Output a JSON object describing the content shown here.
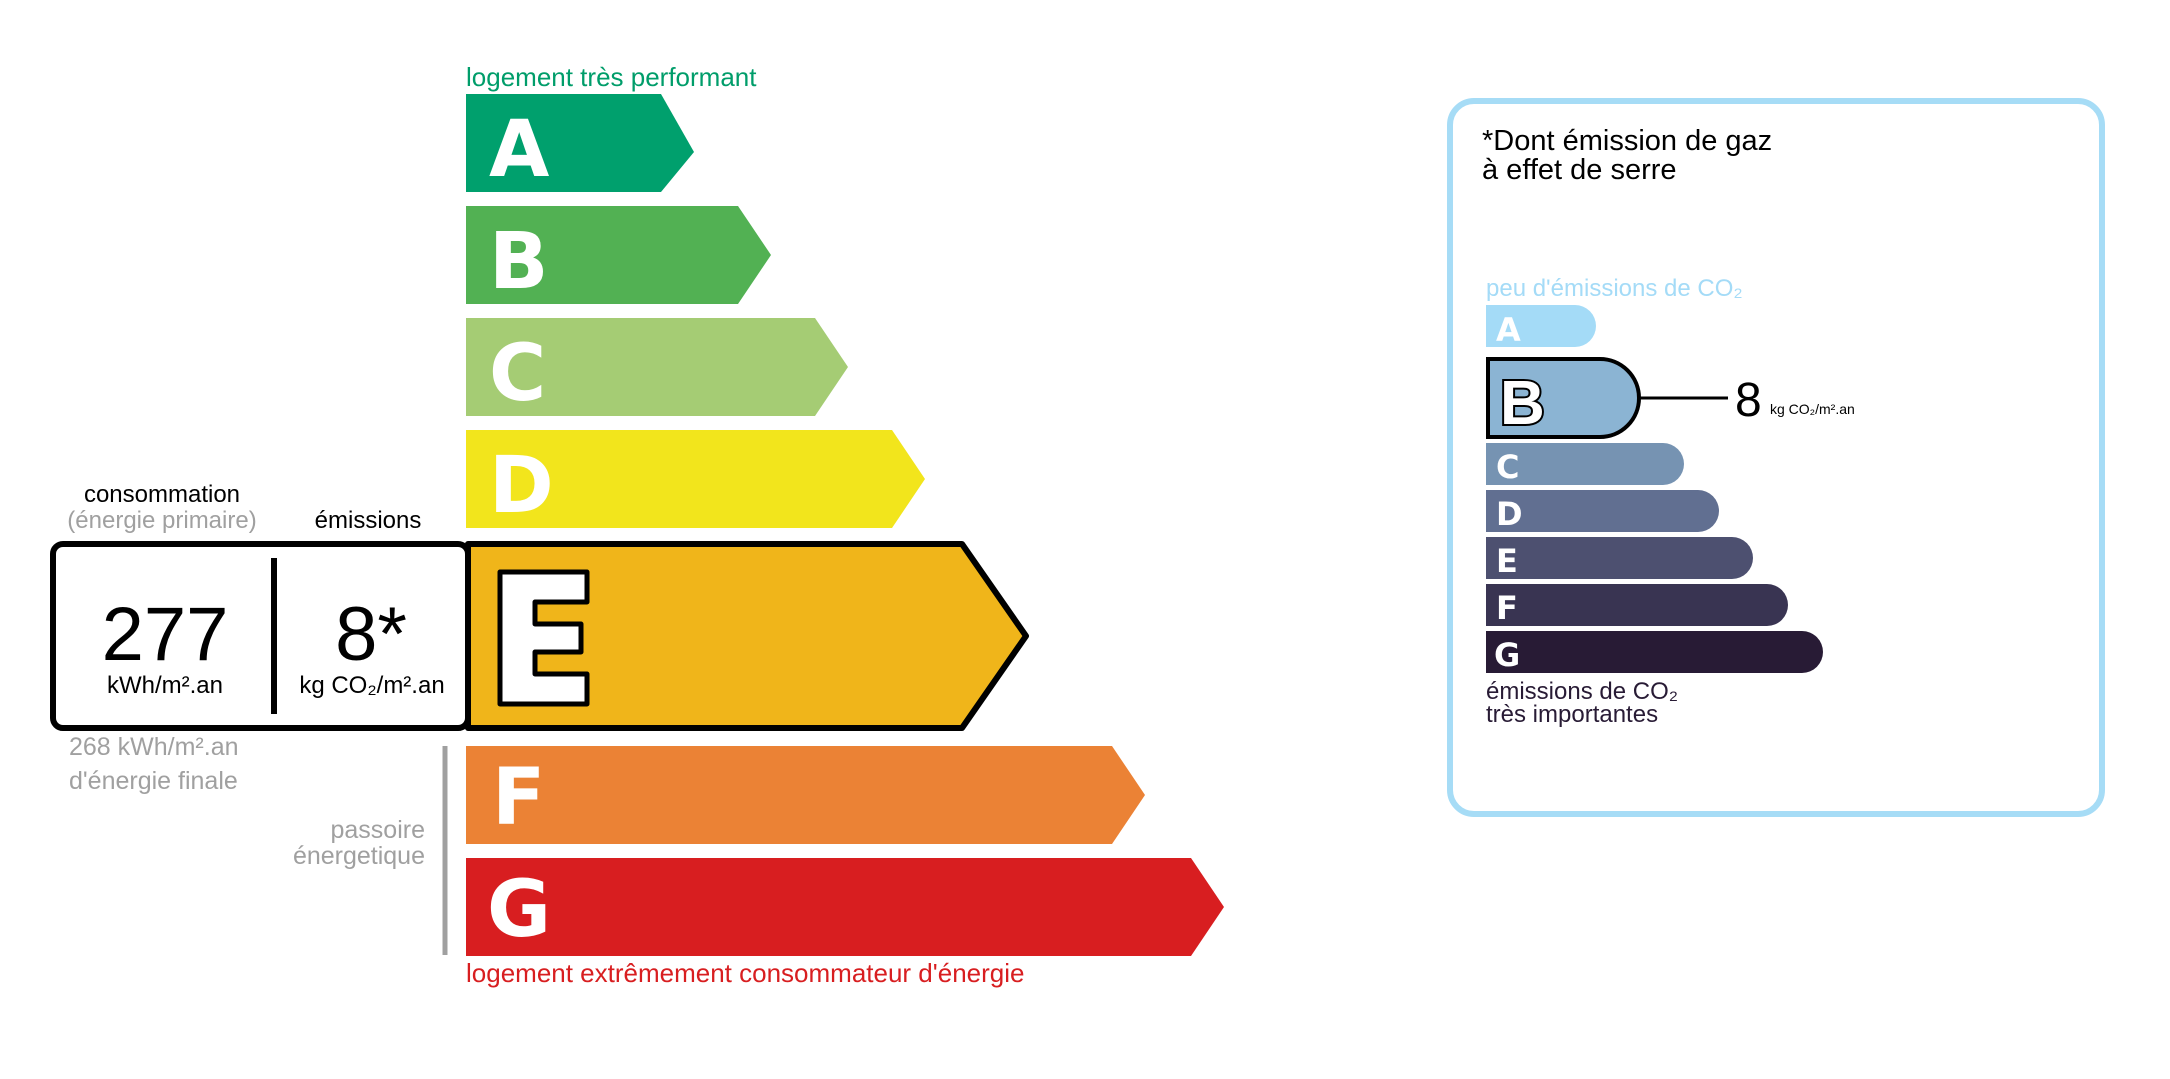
{
  "energy_label": {
    "top_caption": "logement très performant",
    "bottom_caption": "logement extrêmement consommateur d'énergie",
    "classes": [
      {
        "letter": "A",
        "color": "#00a06d"
      },
      {
        "letter": "B",
        "color": "#52b153"
      },
      {
        "letter": "C",
        "color": "#a5cc74"
      },
      {
        "letter": "D",
        "color": "#f2e51c"
      },
      {
        "letter": "E",
        "color": "#f0b51a"
      },
      {
        "letter": "F",
        "color": "#eb8235"
      },
      {
        "letter": "G",
        "color": "#d81e20"
      }
    ],
    "current_class": "E",
    "consumption_label": "consommation",
    "consumption_sublabel": "(énergie primaire)",
    "emissions_label": "émissions",
    "consumption_value": "277",
    "consumption_unit": "kWh/m².an",
    "emissions_value": "8*",
    "emissions_unit": "kg CO₂/m².an",
    "final_energy_value": "268 kWh/m².an",
    "final_energy_label": "d'énergie finale",
    "passoire_line1": "passoire",
    "passoire_line2": "énergetique"
  },
  "ghg_panel": {
    "title_line1": "*Dont émission de gaz",
    "title_line2": "à effet de serre",
    "top_caption": "peu d'émissions de CO₂",
    "bottom_caption_line1": "émissions de CO₂",
    "bottom_caption_line2": "très importantes",
    "classes": [
      {
        "letter": "A",
        "color": "#a4dbf7"
      },
      {
        "letter": "B",
        "color": "#8bb4d3"
      },
      {
        "letter": "C",
        "color": "#7693b2"
      },
      {
        "letter": "D",
        "color": "#616f91"
      },
      {
        "letter": "E",
        "color": "#4d5070"
      },
      {
        "letter": "F",
        "color": "#393452"
      },
      {
        "letter": "G",
        "color": "#281b35"
      }
    ],
    "current_class": "B",
    "value": "8",
    "unit": "kg CO₂/m².an",
    "border_color": "#a6dcf6"
  }
}
